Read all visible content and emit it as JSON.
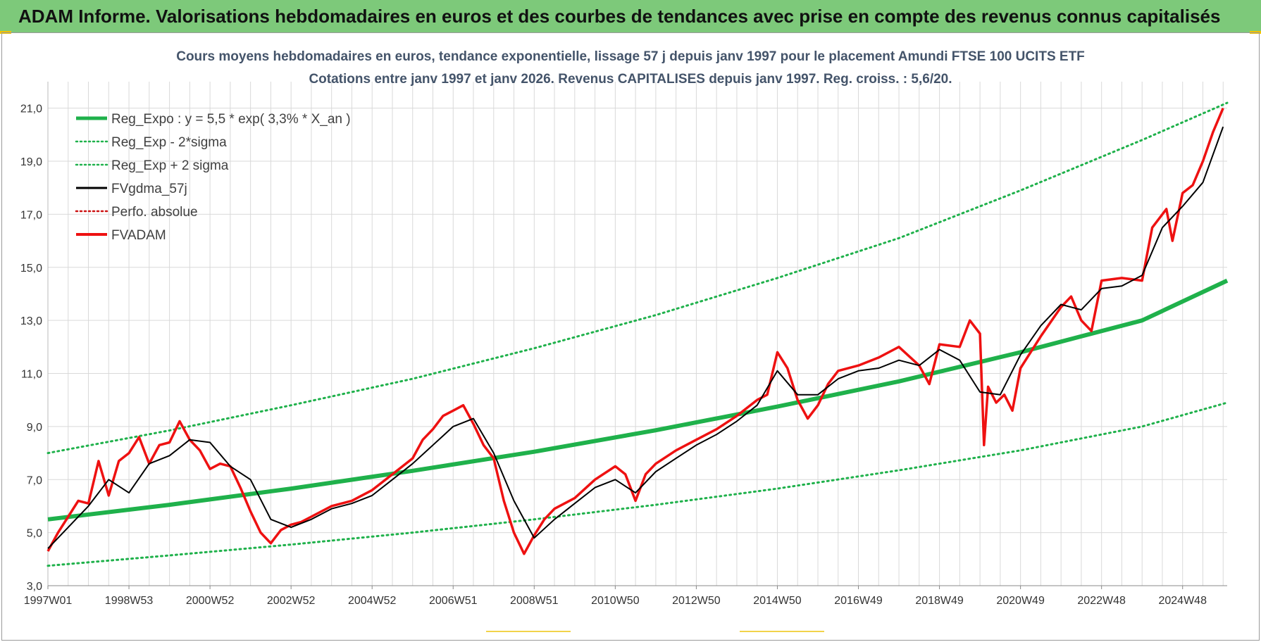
{
  "header": {
    "title": "ADAM Informe. Valorisations hebdomadaires en euros et des courbes de tendances avec prise en compte des revenus connus capitalisés"
  },
  "colors": {
    "banner": "#7dc97a",
    "regression": "#1fb14b",
    "price": "#ee1111",
    "smoothed": "#000000",
    "perfo": "#cc1111",
    "grid": "#d9d9d9"
  },
  "chart_data": {
    "type": "line",
    "title": "Cours moyens hebdomadaires en euros, tendance exponentielle, lissage 57 j depuis janv 1997  pour le placement Amundi FTSE 100 UCITS ETF",
    "subtitle": "Cotations entre janv 1997 et janv 2026. Revenus CAPITALISES depuis janv 1997. Reg. croiss. : 5,6/20.",
    "xlabel": "",
    "ylabel": "",
    "x_range": [
      1997.0,
      2026.1
    ],
    "ylim": [
      3.0,
      22.0
    ],
    "y_ticks": [
      "3,0",
      "5,0",
      "7,0",
      "9,0",
      "11,0",
      "13,0",
      "15,0",
      "17,0",
      "19,0",
      "21,0"
    ],
    "x_tick_labels": [
      {
        "label": "1997W01",
        "t": 1997.0
      },
      {
        "label": "1998W53",
        "t": 1999.0
      },
      {
        "label": "2000W52",
        "t": 2001.0
      },
      {
        "label": "2002W52",
        "t": 2003.0
      },
      {
        "label": "2004W52",
        "t": 2005.0
      },
      {
        "label": "2006W51",
        "t": 2007.0
      },
      {
        "label": "2008W51",
        "t": 2009.0
      },
      {
        "label": "2010W50",
        "t": 2011.0
      },
      {
        "label": "2012W50",
        "t": 2013.0
      },
      {
        "label": "2014W50",
        "t": 2015.0
      },
      {
        "label": "2016W49",
        "t": 2017.0
      },
      {
        "label": "2018W49",
        "t": 2019.0
      },
      {
        "label": "2020W49",
        "t": 2021.0
      },
      {
        "label": "2022W48",
        "t": 2023.0
      },
      {
        "label": "2024W48",
        "t": 2025.0
      }
    ],
    "grid": true,
    "legend_position": "top-left",
    "series": [
      {
        "name": "Reg_Expo : y = 5,5 * exp( 3,3% *  X_an )",
        "style": "thick-solid",
        "color": "#1fb14b",
        "x": [
          1997.0,
          2000.0,
          2003.0,
          2006.0,
          2009.0,
          2012.0,
          2015.0,
          2018.0,
          2021.0,
          2024.0,
          2026.1
        ],
        "y": [
          5.5,
          6.05,
          6.66,
          7.33,
          8.05,
          8.86,
          9.75,
          10.7,
          11.8,
          13.0,
          14.5
        ]
      },
      {
        "name": "Reg_Exp - 2*sigma",
        "style": "dotted",
        "color": "#1fb14b",
        "x": [
          1997.0,
          2000.0,
          2003.0,
          2006.0,
          2009.0,
          2012.0,
          2015.0,
          2018.0,
          2021.0,
          2024.0,
          2026.1
        ],
        "y": [
          3.75,
          4.14,
          4.55,
          5.0,
          5.5,
          6.05,
          6.66,
          7.35,
          8.1,
          9.0,
          9.9
        ]
      },
      {
        "name": "Reg_Exp + 2 sigma",
        "style": "dotted",
        "color": "#1fb14b",
        "x": [
          1997.0,
          2000.0,
          2003.0,
          2006.0,
          2009.0,
          2012.0,
          2015.0,
          2018.0,
          2021.0,
          2024.0,
          2026.1
        ],
        "y": [
          8.0,
          8.85,
          9.8,
          10.8,
          11.95,
          13.2,
          14.6,
          16.1,
          17.9,
          19.8,
          21.2
        ]
      },
      {
        "name": "FVgdma_57j",
        "style": "solid",
        "color": "#000000",
        "x": [
          1997.0,
          1997.5,
          1998.0,
          1998.5,
          1999.0,
          1999.5,
          2000.0,
          2000.5,
          2001.0,
          2001.5,
          2002.0,
          2002.5,
          2003.0,
          2003.5,
          2004.0,
          2004.5,
          2005.0,
          2005.5,
          2006.0,
          2006.5,
          2007.0,
          2007.5,
          2008.0,
          2008.5,
          2009.0,
          2009.5,
          2010.0,
          2010.5,
          2011.0,
          2011.5,
          2012.0,
          2012.5,
          2013.0,
          2013.5,
          2014.0,
          2014.5,
          2015.0,
          2015.5,
          2016.0,
          2016.5,
          2017.0,
          2017.5,
          2018.0,
          2018.5,
          2019.0,
          2019.5,
          2020.0,
          2020.5,
          2021.0,
          2021.5,
          2022.0,
          2022.5,
          2023.0,
          2023.5,
          2024.0,
          2024.5,
          2025.0,
          2025.5,
          2026.0
        ],
        "y": [
          4.4,
          5.2,
          6.0,
          7.0,
          6.5,
          7.6,
          7.9,
          8.5,
          8.4,
          7.5,
          7.0,
          5.5,
          5.2,
          5.5,
          5.9,
          6.1,
          6.4,
          7.0,
          7.6,
          8.3,
          9.0,
          9.3,
          8.0,
          6.2,
          4.8,
          5.5,
          6.1,
          6.7,
          7.0,
          6.5,
          7.3,
          7.8,
          8.3,
          8.7,
          9.2,
          9.8,
          11.1,
          10.2,
          10.2,
          10.8,
          11.1,
          11.2,
          11.5,
          11.3,
          11.9,
          11.5,
          10.3,
          10.2,
          11.7,
          12.8,
          13.6,
          13.4,
          14.2,
          14.3,
          14.7,
          16.5,
          17.3,
          18.2,
          20.3
        ]
      },
      {
        "name": "Perfo. absolue",
        "style": "dotted",
        "color": "#cc1111",
        "x": [],
        "y": []
      },
      {
        "name": "FVADAM",
        "style": "solid",
        "color": "#ee1111",
        "x": [
          1997.0,
          1997.25,
          1997.5,
          1997.75,
          1998.0,
          1998.25,
          1998.5,
          1998.75,
          1999.0,
          1999.25,
          1999.5,
          1999.75,
          2000.0,
          2000.25,
          2000.5,
          2000.75,
          2001.0,
          2001.25,
          2001.5,
          2001.75,
          2002.0,
          2002.25,
          2002.5,
          2002.75,
          2003.0,
          2003.25,
          2003.5,
          2004.0,
          2004.5,
          2005.0,
          2005.5,
          2006.0,
          2006.25,
          2006.5,
          2006.75,
          2007.0,
          2007.25,
          2007.5,
          2007.75,
          2008.0,
          2008.25,
          2008.5,
          2008.75,
          2009.0,
          2009.25,
          2009.5,
          2010.0,
          2010.5,
          2011.0,
          2011.25,
          2011.5,
          2011.75,
          2012.0,
          2012.5,
          2013.0,
          2013.5,
          2014.0,
          2014.5,
          2014.75,
          2015.0,
          2015.25,
          2015.5,
          2015.75,
          2016.0,
          2016.25,
          2016.5,
          2017.0,
          2017.5,
          2018.0,
          2018.5,
          2018.75,
          2019.0,
          2019.5,
          2019.75,
          2020.0,
          2020.1,
          2020.2,
          2020.4,
          2020.6,
          2020.8,
          2021.0,
          2021.5,
          2022.0,
          2022.25,
          2022.5,
          2022.75,
          2023.0,
          2023.5,
          2024.0,
          2024.25,
          2024.5,
          2024.6,
          2024.75,
          2025.0,
          2025.25,
          2025.5,
          2025.75,
          2026.0
        ],
        "y": [
          4.3,
          5.0,
          5.6,
          6.2,
          6.1,
          7.7,
          6.4,
          7.7,
          8.0,
          8.6,
          7.6,
          8.3,
          8.4,
          9.2,
          8.5,
          8.1,
          7.4,
          7.6,
          7.5,
          6.7,
          5.8,
          5.0,
          4.6,
          5.1,
          5.3,
          5.4,
          5.6,
          6.0,
          6.2,
          6.6,
          7.2,
          7.8,
          8.5,
          8.9,
          9.4,
          9.6,
          9.8,
          9.1,
          8.3,
          7.8,
          6.2,
          5.0,
          4.2,
          4.9,
          5.5,
          5.9,
          6.3,
          7.0,
          7.5,
          7.2,
          6.2,
          7.2,
          7.6,
          8.1,
          8.5,
          8.9,
          9.4,
          10.0,
          10.2,
          11.8,
          11.2,
          10.0,
          9.3,
          9.8,
          10.6,
          11.1,
          11.3,
          11.6,
          12.0,
          11.3,
          10.6,
          12.1,
          12.0,
          13.0,
          12.5,
          8.3,
          10.5,
          9.9,
          10.2,
          9.6,
          11.2,
          12.4,
          13.5,
          13.9,
          13.0,
          12.6,
          14.5,
          14.6,
          14.5,
          16.5,
          17.0,
          17.2,
          16.0,
          17.8,
          18.1,
          19.0,
          20.1,
          21.0
        ]
      }
    ]
  }
}
